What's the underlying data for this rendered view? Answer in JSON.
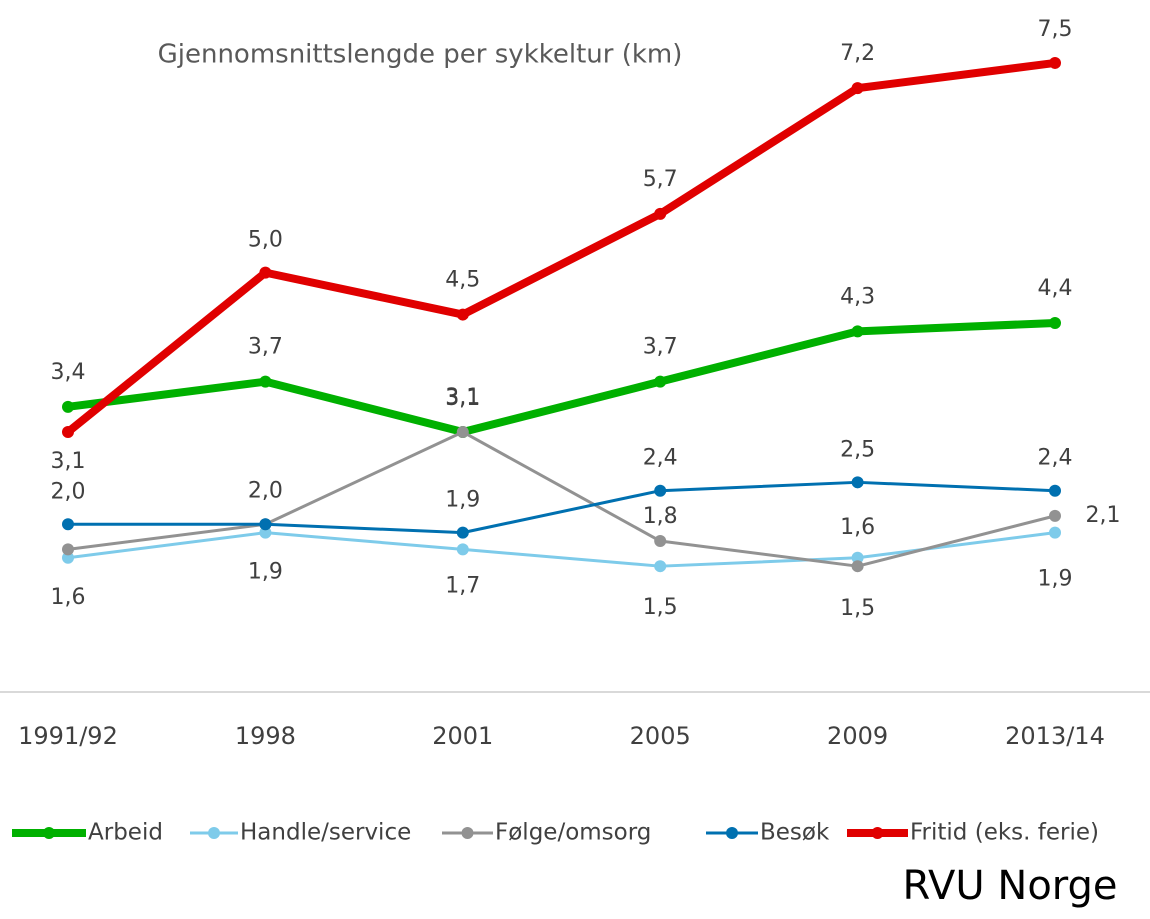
{
  "chart_data": {
    "type": "line",
    "title": "Gjennomsnittslengde per sykkeltur (km)",
    "categories": [
      "1991/92",
      "1998",
      "2001",
      "2005",
      "2009",
      "2013/14"
    ],
    "ylim": [
      0,
      8
    ],
    "series": [
      {
        "name": "Arbeid",
        "color": "#00b000",
        "values": [
          3.4,
          3.7,
          3.1,
          3.7,
          4.3,
          4.4
        ],
        "value_labels": [
          "3,4",
          "3,7",
          "3,1",
          "3,7",
          "4,3",
          "4,4"
        ]
      },
      {
        "name": "Handle/service",
        "color": "#7ecbea",
        "values": [
          1.6,
          1.9,
          1.7,
          1.5,
          1.6,
          1.9
        ],
        "value_labels": [
          "1,6",
          "1,9",
          "1,7",
          "1,5",
          "1,6",
          "1,9"
        ]
      },
      {
        "name": "Følge/omsorg",
        "color": "#929292",
        "values": [
          1.7,
          2.0,
          3.1,
          1.8,
          1.5,
          2.1
        ],
        "value_labels": [
          null,
          "2,0",
          "3,1",
          "1,8",
          "1,5",
          "2,1"
        ]
      },
      {
        "name": "Besøk",
        "color": "#0070b0",
        "values": [
          2.0,
          2.0,
          1.9,
          2.4,
          2.5,
          2.4
        ],
        "value_labels": [
          "2,0",
          null,
          "1,9",
          "2,4",
          "2,5",
          "2,4"
        ]
      },
      {
        "name": "Fritid (eks. ferie)",
        "color": "#e00000",
        "values": [
          3.1,
          5.0,
          4.5,
          5.7,
          7.2,
          7.5
        ],
        "value_labels": [
          "3,1",
          "5,0",
          "4,5",
          "5,7",
          "7,2",
          "7,5"
        ]
      }
    ],
    "legend": "bottom",
    "source": "RVU Norge"
  }
}
